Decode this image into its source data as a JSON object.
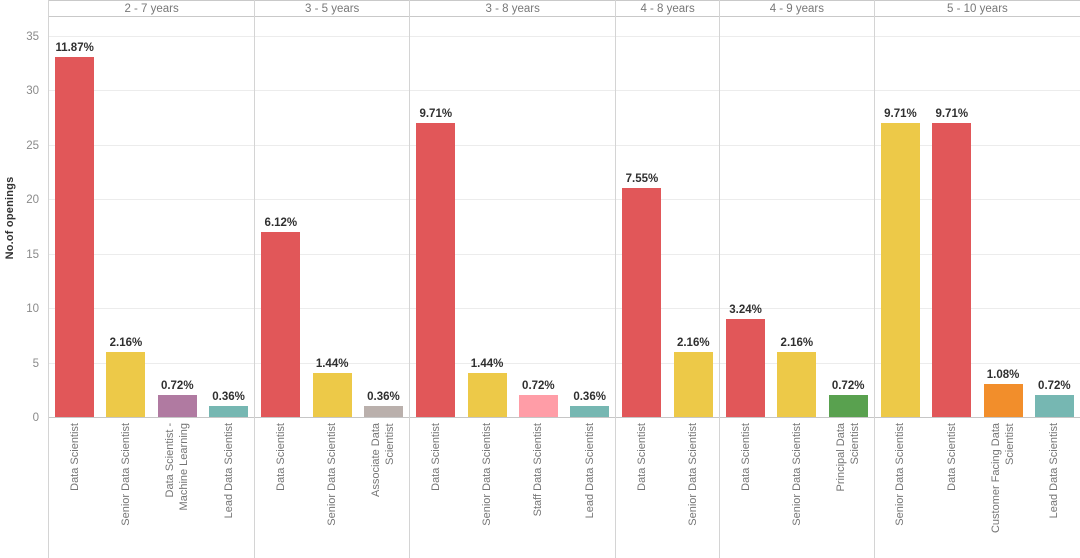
{
  "chart_data": {
    "type": "bar",
    "title": "",
    "xlabel": "",
    "ylabel": "No.of openings",
    "ylim": [
      0,
      36.8
    ],
    "yticks": [
      0,
      5,
      10,
      15,
      20,
      25,
      30,
      35
    ],
    "grid": true,
    "legend": "none",
    "facet_by": "experience range",
    "facets": [
      {
        "label": "2 - 7 years",
        "bars": [
          {
            "category": "Data Scientist",
            "value": 33,
            "pct_label": "11.87%",
            "color": "#E15759"
          },
          {
            "category": "Senior Data Scientist",
            "value": 6,
            "pct_label": "2.16%",
            "color": "#EDC948"
          },
          {
            "category": "Data Scientist -\nMachine Learning",
            "value": 2,
            "pct_label": "0.72%",
            "color": "#B07AA1"
          },
          {
            "category": "Lead Data Scientist",
            "value": 1,
            "pct_label": "0.36%",
            "color": "#76B7B2"
          }
        ]
      },
      {
        "label": "3 - 5 years",
        "bars": [
          {
            "category": "Data Scientist",
            "value": 17,
            "pct_label": "6.12%",
            "color": "#E15759"
          },
          {
            "category": "Senior Data Scientist",
            "value": 4,
            "pct_label": "1.44%",
            "color": "#EDC948"
          },
          {
            "category": "Associate Data\nScientist",
            "value": 1,
            "pct_label": "0.36%",
            "color": "#BAB0AC"
          }
        ]
      },
      {
        "label": "3 - 8 years",
        "bars": [
          {
            "category": "Data Scientist",
            "value": 27,
            "pct_label": "9.71%",
            "color": "#E15759"
          },
          {
            "category": "Senior Data Scientist",
            "value": 4,
            "pct_label": "1.44%",
            "color": "#EDC948"
          },
          {
            "category": "Staff Data Scientist",
            "value": 2,
            "pct_label": "0.72%",
            "color": "#FF9DA7"
          },
          {
            "category": "Lead Data Scientist",
            "value": 1,
            "pct_label": "0.36%",
            "color": "#76B7B2"
          }
        ]
      },
      {
        "label": "4 - 8 years",
        "bars": [
          {
            "category": "Data Scientist",
            "value": 21,
            "pct_label": "7.55%",
            "color": "#E15759"
          },
          {
            "category": "Senior Data Scientist",
            "value": 6,
            "pct_label": "2.16%",
            "color": "#EDC948"
          }
        ]
      },
      {
        "label": "4 - 9 years",
        "bars": [
          {
            "category": "Data Scientist",
            "value": 9,
            "pct_label": "3.24%",
            "color": "#E15759"
          },
          {
            "category": "Senior Data Scientist",
            "value": 6,
            "pct_label": "2.16%",
            "color": "#EDC948"
          },
          {
            "category": "Principal Data\nScientist",
            "value": 2,
            "pct_label": "0.72%",
            "color": "#59A14F"
          }
        ]
      },
      {
        "label": "5 - 10 years",
        "bars": [
          {
            "category": "Senior Data Scientist",
            "value": 27,
            "pct_label": "9.71%",
            "color": "#EDC948"
          },
          {
            "category": "Data Scientist",
            "value": 27,
            "pct_label": "9.71%",
            "color": "#E15759"
          },
          {
            "category": "Customer Facing Data\nScientist",
            "value": 3,
            "pct_label": "1.08%",
            "color": "#F28E2B"
          },
          {
            "category": "Lead Data Scientist",
            "value": 2,
            "pct_label": "0.72%",
            "color": "#76B7B2"
          }
        ]
      }
    ]
  },
  "style_colors": {
    "gridline": "#ececec",
    "panel_divider": "#d4d4d4",
    "axis_line": "#c6c6c6",
    "tick_text": "#8a8a8a",
    "header_text": "#787878",
    "value_label_text": "#303030"
  }
}
